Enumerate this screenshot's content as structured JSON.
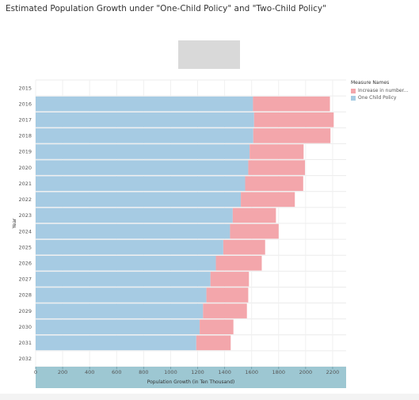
{
  "chart_data": {
    "type": "bar",
    "orientation": "horizontal",
    "stacked": true,
    "title": "Estimated Population Growth under \"One-Child Policy\" and \"Two-Child Policy\"",
    "xlabel": "Population Growth  (in Ten Thousand)",
    "ylabel": "Year",
    "xlim": [
      0,
      2300
    ],
    "xticks": [
      0,
      200,
      400,
      600,
      800,
      1000,
      1200,
      1400,
      1600,
      1800,
      2000,
      2200
    ],
    "categories": [
      "2015",
      "2016",
      "2017",
      "2018",
      "2019",
      "2020",
      "2021",
      "2022",
      "2023",
      "2024",
      "2025",
      "2026",
      "2027",
      "2028",
      "2029",
      "2030",
      "2031",
      "2032"
    ],
    "legend_title": "Measure Names",
    "legend_position": "top-right",
    "grid": true,
    "series": [
      {
        "name": "One Child Policy",
        "color": "#a6cbe3",
        "values": [
          null,
          1610,
          1618,
          1612,
          1585,
          1575,
          1552,
          1520,
          1460,
          1440,
          1390,
          1335,
          1295,
          1265,
          1240,
          1215,
          1190,
          null
        ]
      },
      {
        "name": "Increase in number...",
        "color": "#f3a6ab",
        "values": [
          null,
          570,
          590,
          572,
          400,
          420,
          430,
          400,
          320,
          360,
          310,
          340,
          285,
          310,
          325,
          250,
          255,
          null
        ]
      }
    ]
  }
}
